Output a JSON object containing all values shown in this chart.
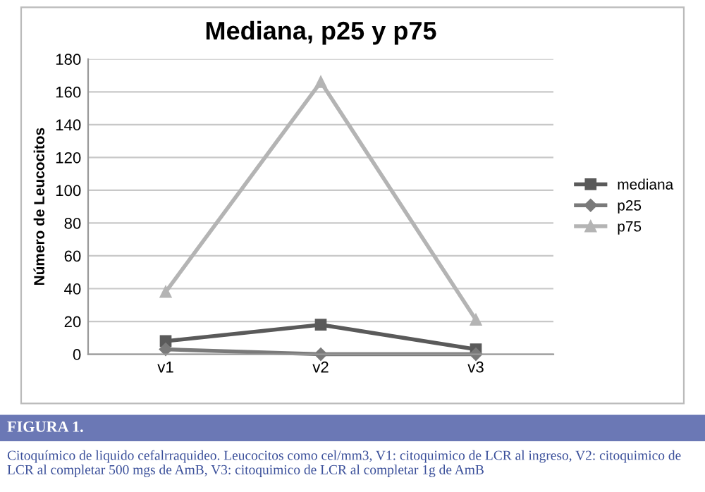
{
  "chart_data": {
    "type": "line",
    "title": "Mediana, p25 y p75",
    "ylabel": "Número de Leucocitos",
    "categories": [
      "v1",
      "v2",
      "v3"
    ],
    "series": [
      {
        "name": "mediana",
        "color": "#5a5a5a",
        "values": [
          8,
          18,
          3
        ],
        "marker": "square"
      },
      {
        "name": "p25",
        "color": "#7a7a7a",
        "values": [
          3,
          0,
          0
        ],
        "marker": "diamond"
      },
      {
        "name": "p75",
        "color": "#b4b4b4",
        "values": [
          38,
          166,
          21
        ],
        "marker": "triangle"
      }
    ],
    "ylim": [
      0,
      180
    ],
    "yticks": [
      0,
      20,
      40,
      60,
      80,
      100,
      120,
      140,
      160,
      180
    ],
    "grid": "y",
    "legend": "right",
    "line_style": "solid",
    "annotations": [
      "FIGURA 1.",
      "Citoquímico de liquido cefalrraquideo. Leucocitos como cel/mm3, V1: citoquimico de LCR al ingreso, V2: citoquimico de LCR al completar 500 mgs de AmB, V3: citoquimico de LCR al completar 1g de AmB"
    ]
  }
}
